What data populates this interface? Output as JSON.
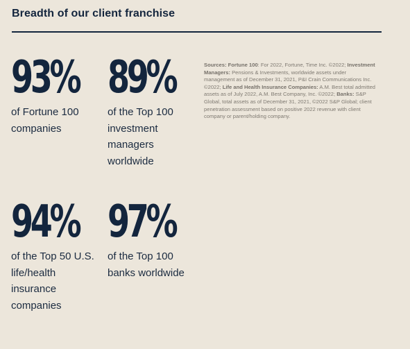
{
  "title": "Breadth of our client franchise",
  "stats": [
    {
      "value": "93%",
      "description": "of Fortune 100 companies"
    },
    {
      "value": "89%",
      "description": "of the Top 100 investment managers worldwide"
    },
    {
      "value": "94%",
      "description": "of the Top 50 U.S. life/health insurance companies"
    },
    {
      "value": "97%",
      "description": "of the Top 100 banks worldwide"
    }
  ],
  "sources": {
    "intro_label": "Sources:",
    "fortune_label": "Fortune 100",
    "fortune_text": ": For 2022, Fortune, Time Inc. ©2022;",
    "im_label": "Investment Managers:",
    "im_text": " Pensions & Investments, worldwide assets under management as of December 31, 2021, P&I Crain Communications Inc. ©2022;",
    "life_label": "Life and Health Insurance Companies:",
    "life_text": " A.M. Best total admitted assets as of July 2022, A.M. Best Company, Inc. ©2022;",
    "banks_label": "Banks:",
    "banks_text": " S&P Global, total assets as of December 31, 2021, ©2022 S&P Global; client penetration assessment based on positive 2022 revenue with client company or parent/holding company."
  }
}
